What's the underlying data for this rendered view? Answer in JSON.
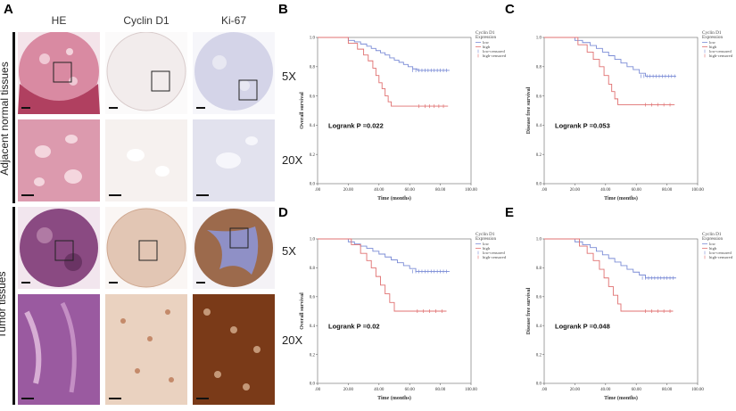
{
  "panel_a": {
    "letter": "A",
    "columns": [
      "HE",
      "Cyclin D1",
      "Ki-67"
    ],
    "rows": [
      "Adjacent normal tissues",
      "Tumor tissues"
    ],
    "magnifications": [
      "5X",
      "20X",
      "5X",
      "20X"
    ]
  },
  "colors": {
    "low": "#7b8cd6",
    "high": "#e07070",
    "he_pink": "#d47e94",
    "ihc_brown": "#8a4a22",
    "ihc_blue": "#8f90c6",
    "tile_border": "#d8d8d8"
  },
  "chart_data": [
    {
      "id": "B",
      "letter": "B",
      "type": "line",
      "ylabel": "Overall survival",
      "xlabel": "Time (months)",
      "pvalue": "Logrank P =0.022",
      "xlim": [
        0,
        100
      ],
      "ylim": [
        0,
        1
      ],
      "xticks": [
        ".00",
        "20.00",
        "40.00",
        "60.00",
        "80.00",
        "100.00"
      ],
      "yticks": [
        "0.0",
        "0.2",
        "0.4",
        "0.6",
        "0.8",
        "1.0"
      ],
      "legend": {
        "title": "Cyclin D1 Expression",
        "entries": [
          "low",
          "high",
          "low-censored",
          "high-censored"
        ]
      },
      "series": [
        {
          "name": "low",
          "points": [
            [
              0,
              1.0
            ],
            [
              14,
              1.0
            ],
            [
              20,
              0.98
            ],
            [
              24,
              0.97
            ],
            [
              28,
              0.955
            ],
            [
              32,
              0.94
            ],
            [
              35,
              0.925
            ],
            [
              38,
              0.91
            ],
            [
              41,
              0.895
            ],
            [
              44,
              0.88
            ],
            [
              47,
              0.86
            ],
            [
              50,
              0.845
            ],
            [
              53,
              0.83
            ],
            [
              56,
              0.815
            ],
            [
              59,
              0.8
            ],
            [
              62,
              0.785
            ],
            [
              65,
              0.775
            ],
            [
              86,
              0.775
            ]
          ],
          "censored_x": [
            62,
            64,
            66,
            68,
            70,
            72,
            74,
            76,
            78,
            80,
            82,
            84
          ]
        },
        {
          "name": "high",
          "points": [
            [
              0,
              1.0
            ],
            [
              16,
              1.0
            ],
            [
              20,
              0.96
            ],
            [
              26,
              0.92
            ],
            [
              30,
              0.88
            ],
            [
              33,
              0.84
            ],
            [
              36,
              0.79
            ],
            [
              38,
              0.74
            ],
            [
              40,
              0.69
            ],
            [
              42,
              0.65
            ],
            [
              44,
              0.6
            ],
            [
              46,
              0.56
            ],
            [
              48,
              0.53
            ],
            [
              85,
              0.53
            ]
          ],
          "censored_x": [
            66,
            70,
            73,
            76,
            79,
            82
          ]
        }
      ]
    },
    {
      "id": "C",
      "letter": "C",
      "type": "line",
      "ylabel": "Disease free survival",
      "xlabel": "Time (months)",
      "pvalue": "Logrank P =0.053",
      "xlim": [
        0,
        100
      ],
      "ylim": [
        0,
        1
      ],
      "xticks": [
        ".00",
        "20.00",
        "40.00",
        "60.00",
        "80.00",
        "100.00"
      ],
      "yticks": [
        "0.0",
        "0.2",
        "0.4",
        "0.6",
        "0.8",
        "1.0"
      ],
      "legend": {
        "title": "Cyclin D1 Expression",
        "entries": [
          "low",
          "high",
          "low-censored",
          "high-censored"
        ]
      },
      "series": [
        {
          "name": "low",
          "points": [
            [
              0,
              1.0
            ],
            [
              14,
              1.0
            ],
            [
              20,
              0.98
            ],
            [
              25,
              0.965
            ],
            [
              30,
              0.945
            ],
            [
              34,
              0.925
            ],
            [
              38,
              0.9
            ],
            [
              42,
              0.875
            ],
            [
              46,
              0.85
            ],
            [
              50,
              0.825
            ],
            [
              54,
              0.8
            ],
            [
              58,
              0.78
            ],
            [
              62,
              0.755
            ],
            [
              66,
              0.735
            ],
            [
              86,
              0.735
            ]
          ],
          "censored_x": [
            63,
            65,
            67,
            69,
            71,
            73,
            75,
            77,
            79,
            81,
            83,
            85
          ]
        },
        {
          "name": "high",
          "points": [
            [
              0,
              1.0
            ],
            [
              16,
              1.0
            ],
            [
              22,
              0.95
            ],
            [
              28,
              0.9
            ],
            [
              32,
              0.85
            ],
            [
              36,
              0.8
            ],
            [
              39,
              0.74
            ],
            [
              42,
              0.68
            ],
            [
              44,
              0.63
            ],
            [
              46,
              0.58
            ],
            [
              48,
              0.54
            ],
            [
              85,
              0.54
            ]
          ],
          "censored_x": [
            66,
            70,
            74,
            78,
            82
          ]
        }
      ]
    },
    {
      "id": "D",
      "letter": "D",
      "type": "line",
      "ylabel": "Overall survival",
      "xlabel": "Time (months)",
      "pvalue": "Logrank P =0.02",
      "xlim": [
        0,
        100
      ],
      "ylim": [
        0,
        1
      ],
      "xticks": [
        ".00",
        "20.00",
        "40.00",
        "60.00",
        "80.00",
        "100.00"
      ],
      "yticks": [
        "0.0",
        "0.2",
        "0.4",
        "0.6",
        "0.8",
        "1.0"
      ],
      "legend": {
        "title": "Cyclin D1 Expression",
        "entries": [
          "low",
          "high",
          "low-censored",
          "high-censored"
        ]
      },
      "series": [
        {
          "name": "low",
          "points": [
            [
              0,
              1.0
            ],
            [
              14,
              1.0
            ],
            [
              20,
              0.98
            ],
            [
              24,
              0.965
            ],
            [
              28,
              0.95
            ],
            [
              32,
              0.935
            ],
            [
              36,
              0.915
            ],
            [
              40,
              0.895
            ],
            [
              44,
              0.875
            ],
            [
              48,
              0.855
            ],
            [
              52,
              0.835
            ],
            [
              56,
              0.815
            ],
            [
              60,
              0.795
            ],
            [
              64,
              0.775
            ],
            [
              86,
              0.775
            ]
          ],
          "censored_x": [
            62,
            64,
            66,
            68,
            70,
            72,
            74,
            76,
            78,
            80,
            82,
            84
          ]
        },
        {
          "name": "high",
          "points": [
            [
              0,
              1.0
            ],
            [
              18,
              1.0
            ],
            [
              22,
              0.96
            ],
            [
              28,
              0.9
            ],
            [
              32,
              0.85
            ],
            [
              35,
              0.8
            ],
            [
              38,
              0.74
            ],
            [
              41,
              0.68
            ],
            [
              44,
              0.62
            ],
            [
              47,
              0.56
            ],
            [
              50,
              0.5
            ],
            [
              84,
              0.5
            ]
          ],
          "censored_x": [
            65,
            69,
            73,
            77,
            81
          ]
        }
      ]
    },
    {
      "id": "E",
      "letter": "E",
      "type": "line",
      "ylabel": "Disease free survival",
      "xlabel": "Time (months)",
      "pvalue": "Logrank P =0.048",
      "xlim": [
        0,
        100
      ],
      "ylim": [
        0,
        1
      ],
      "xticks": [
        ".00",
        "20.00",
        "40.00",
        "60.00",
        "80.00",
        "100.00"
      ],
      "yticks": [
        "0.0",
        "0.2",
        "0.4",
        "0.6",
        "0.8",
        "1.0"
      ],
      "legend": {
        "title": "Cyclin D1 Expression",
        "entries": [
          "low",
          "high",
          "low-censored",
          "high-censored"
        ]
      },
      "series": [
        {
          "name": "low",
          "points": [
            [
              0,
              1.0
            ],
            [
              14,
              1.0
            ],
            [
              20,
              0.98
            ],
            [
              25,
              0.96
            ],
            [
              30,
              0.94
            ],
            [
              34,
              0.915
            ],
            [
              38,
              0.89
            ],
            [
              42,
              0.865
            ],
            [
              46,
              0.84
            ],
            [
              50,
              0.815
            ],
            [
              54,
              0.79
            ],
            [
              58,
              0.77
            ],
            [
              62,
              0.75
            ],
            [
              66,
              0.73
            ],
            [
              86,
              0.73
            ]
          ],
          "censored_x": [
            64,
            66,
            68,
            70,
            72,
            74,
            76,
            78,
            80,
            82,
            84
          ]
        },
        {
          "name": "high",
          "points": [
            [
              0,
              1.0
            ],
            [
              18,
              1.0
            ],
            [
              23,
              0.95
            ],
            [
              28,
              0.9
            ],
            [
              32,
              0.85
            ],
            [
              36,
              0.79
            ],
            [
              39,
              0.73
            ],
            [
              42,
              0.67
            ],
            [
              45,
              0.61
            ],
            [
              48,
              0.55
            ],
            [
              50,
              0.5
            ],
            [
              84,
              0.5
            ]
          ],
          "censored_x": [
            66,
            70,
            74,
            78,
            82
          ]
        }
      ]
    }
  ]
}
